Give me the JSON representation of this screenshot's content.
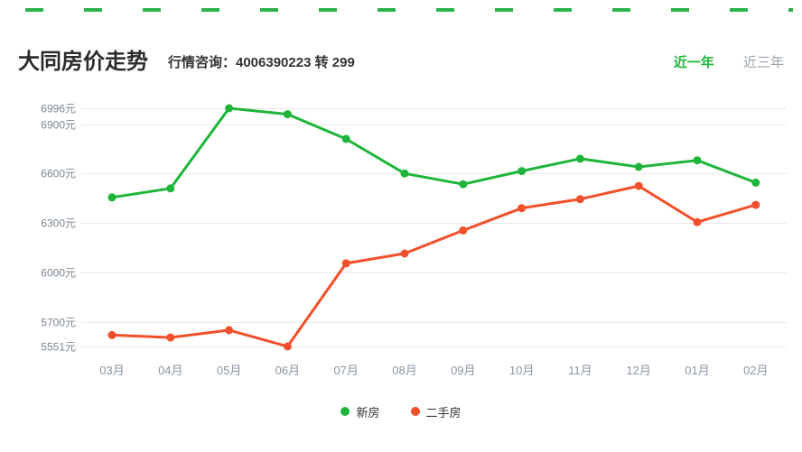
{
  "decor": {
    "top_dash_color": "#2bb24c"
  },
  "header": {
    "title": "大同房价走势",
    "consult_text": "行情咨询：4006390223 转 299",
    "tabs": [
      {
        "label": "近一年",
        "active": true
      },
      {
        "label": "近三年",
        "active": false
      }
    ]
  },
  "chart_data": {
    "type": "line",
    "title": "大同房价走势",
    "categories": [
      "03月",
      "04月",
      "05月",
      "06月",
      "07月",
      "08月",
      "09月",
      "10月",
      "11月",
      "12月",
      "01月",
      "02月"
    ],
    "series": [
      {
        "name": "新房",
        "color": "#1eb53a",
        "values": [
          6455,
          6510,
          6996,
          6960,
          6810,
          6600,
          6535,
          6615,
          6690,
          6640,
          6680,
          6545
        ]
      },
      {
        "name": "二手房",
        "color": "#f1502b",
        "values": [
          5620,
          5605,
          5650,
          5551,
          6055,
          6115,
          6255,
          6390,
          6445,
          6525,
          6305,
          6410
        ]
      }
    ],
    "ylim": [
      5551,
      6996
    ],
    "yticks": [
      {
        "value": 6996,
        "label": "6996元"
      },
      {
        "value": 6900,
        "label": "6900元"
      },
      {
        "value": 6600,
        "label": "6600元"
      },
      {
        "value": 6300,
        "label": "6300元"
      },
      {
        "value": 6000,
        "label": "6000元"
      },
      {
        "value": 5700,
        "label": "5700元"
      },
      {
        "value": 5551,
        "label": "5551元"
      }
    ],
    "grid": true,
    "legend_position": "bottom",
    "unit": "元"
  }
}
